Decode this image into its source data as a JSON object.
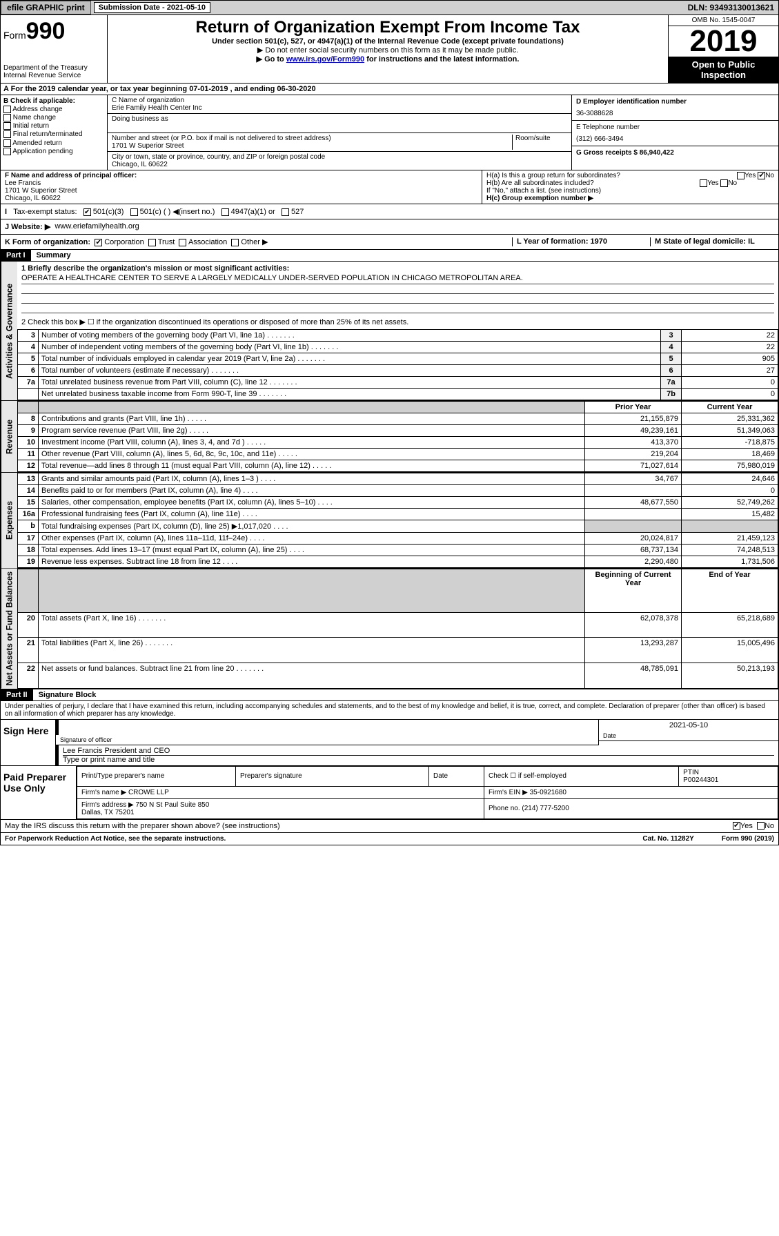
{
  "top": {
    "efile": "efile GRAPHIC print",
    "submission": "Submission Date - 2021-05-10",
    "dln": "DLN: 93493130013621"
  },
  "header": {
    "form_label": "Form",
    "form_num": "990",
    "dept": "Department of the Treasury\nInternal Revenue Service",
    "title": "Return of Organization Exempt From Income Tax",
    "sub": "Under section 501(c), 527, or 4947(a)(1) of the Internal Revenue Code (except private foundations)",
    "note1": "▶ Do not enter social security numbers on this form as it may be made public.",
    "note2_pre": "▶ Go to ",
    "note2_link": "www.irs.gov/Form990",
    "note2_post": " for instructions and the latest information.",
    "omb": "OMB No. 1545-0047",
    "year": "2019",
    "open": "Open to Public Inspection"
  },
  "rowA": "A For the 2019 calendar year, or tax year beginning 07-01-2019   , and ending 06-30-2020",
  "colB": {
    "title": "B Check if applicable:",
    "items": [
      "Address change",
      "Name change",
      "Initial return",
      "Final return/terminated",
      "Amended return",
      "Application pending"
    ]
  },
  "colC": {
    "name_lbl": "C Name of organization",
    "name": "Erie Family Health Center Inc",
    "dba_lbl": "Doing business as",
    "addr_lbl": "Number and street (or P.O. box if mail is not delivered to street address)",
    "room_lbl": "Room/suite",
    "addr": "1701 W Superior Street",
    "city_lbl": "City or town, state or province, country, and ZIP or foreign postal code",
    "city": "Chicago, IL  60622"
  },
  "colD": {
    "ein_lbl": "D Employer identification number",
    "ein": "36-3088628",
    "tel_lbl": "E Telephone number",
    "tel": "(312) 666-3494",
    "gross_lbl": "G Gross receipts $ 86,940,422"
  },
  "colF": {
    "lbl": "F Name and address of principal officer:",
    "name": "Lee Francis",
    "addr": "1701 W Superior Street\nChicago, IL  60622"
  },
  "colH": {
    "a": "H(a)  Is this a group return for subordinates?",
    "b": "H(b)  Are all subordinates included?",
    "note": "If \"No,\" attach a list. (see instructions)",
    "c": "H(c)  Group exemption number ▶"
  },
  "rowI": {
    "lbl": "Tax-exempt status:",
    "o1": "501(c)(3)",
    "o2": "501(c) (   ) ◀(insert no.)",
    "o3": "4947(a)(1) or",
    "o4": "527"
  },
  "rowJ": {
    "lbl": "J   Website: ▶",
    "val": "www.eriefamilyhealth.org"
  },
  "rowK": {
    "lbl": "K Form of organization:",
    "o1": "Corporation",
    "o2": "Trust",
    "o3": "Association",
    "o4": "Other ▶",
    "l": "L Year of formation: 1970",
    "m": "M State of legal domicile: IL"
  },
  "part1": {
    "hdr": "Part I",
    "title": "Summary",
    "q1": "1  Briefly describe the organization's mission or most significant activities:",
    "mission": "OPERATE A HEALTHCARE CENTER TO SERVE A LARGELY MEDICALLY UNDER-SERVED POPULATION IN CHICAGO METROPOLITAN AREA.",
    "q2": "2   Check this box ▶ ☐  if the organization discontinued its operations or disposed of more than 25% of its net assets.",
    "tabs": {
      "activities": "Activities & Governance",
      "revenue": "Revenue",
      "expenses": "Expenses",
      "net": "Net Assets or Fund Balances"
    },
    "rows_act": [
      {
        "n": "3",
        "t": "Number of voting members of the governing body (Part VI, line 1a)",
        "b": "3",
        "v": "22"
      },
      {
        "n": "4",
        "t": "Number of independent voting members of the governing body (Part VI, line 1b)",
        "b": "4",
        "v": "22"
      },
      {
        "n": "5",
        "t": "Total number of individuals employed in calendar year 2019 (Part V, line 2a)",
        "b": "5",
        "v": "905"
      },
      {
        "n": "6",
        "t": "Total number of volunteers (estimate if necessary)",
        "b": "6",
        "v": "27"
      },
      {
        "n": "7a",
        "t": "Total unrelated business revenue from Part VIII, column (C), line 12",
        "b": "7a",
        "v": "0"
      },
      {
        "n": "",
        "t": "Net unrelated business taxable income from Form 990-T, line 39",
        "b": "7b",
        "v": "0"
      }
    ],
    "hdr_prior": "Prior Year",
    "hdr_current": "Current Year",
    "rows_rev": [
      {
        "n": "8",
        "t": "Contributions and grants (Part VIII, line 1h)",
        "p": "21,155,879",
        "c": "25,331,362"
      },
      {
        "n": "9",
        "t": "Program service revenue (Part VIII, line 2g)",
        "p": "49,239,161",
        "c": "51,349,063"
      },
      {
        "n": "10",
        "t": "Investment income (Part VIII, column (A), lines 3, 4, and 7d )",
        "p": "413,370",
        "c": "-718,875"
      },
      {
        "n": "11",
        "t": "Other revenue (Part VIII, column (A), lines 5, 6d, 8c, 9c, 10c, and 11e)",
        "p": "219,204",
        "c": "18,469"
      },
      {
        "n": "12",
        "t": "Total revenue—add lines 8 through 11 (must equal Part VIII, column (A), line 12)",
        "p": "71,027,614",
        "c": "75,980,019"
      }
    ],
    "rows_exp": [
      {
        "n": "13",
        "t": "Grants and similar amounts paid (Part IX, column (A), lines 1–3 )",
        "p": "34,767",
        "c": "24,646"
      },
      {
        "n": "14",
        "t": "Benefits paid to or for members (Part IX, column (A), line 4)",
        "p": "",
        "c": "0"
      },
      {
        "n": "15",
        "t": "Salaries, other compensation, employee benefits (Part IX, column (A), lines 5–10)",
        "p": "48,677,550",
        "c": "52,749,262"
      },
      {
        "n": "16a",
        "t": "Professional fundraising fees (Part IX, column (A), line 11e)",
        "p": "",
        "c": "15,482"
      },
      {
        "n": "b",
        "t": "Total fundraising expenses (Part IX, column (D), line 25) ▶1,017,020",
        "p": "",
        "c": "",
        "shade": true
      },
      {
        "n": "17",
        "t": "Other expenses (Part IX, column (A), lines 11a–11d, 11f–24e)",
        "p": "20,024,817",
        "c": "21,459,123"
      },
      {
        "n": "18",
        "t": "Total expenses. Add lines 13–17 (must equal Part IX, column (A), line 25)",
        "p": "68,737,134",
        "c": "74,248,513"
      },
      {
        "n": "19",
        "t": "Revenue less expenses. Subtract line 18 from line 12",
        "p": "2,290,480",
        "c": "1,731,506"
      }
    ],
    "hdr_beg": "Beginning of Current Year",
    "hdr_end": "End of Year",
    "rows_net": [
      {
        "n": "20",
        "t": "Total assets (Part X, line 16)",
        "p": "62,078,378",
        "c": "65,218,689"
      },
      {
        "n": "21",
        "t": "Total liabilities (Part X, line 26)",
        "p": "13,293,287",
        "c": "15,005,496"
      },
      {
        "n": "22",
        "t": "Net assets or fund balances. Subtract line 21 from line 20",
        "p": "48,785,091",
        "c": "50,213,193"
      }
    ]
  },
  "part2": {
    "hdr": "Part II",
    "title": "Signature Block",
    "decl": "Under penalties of perjury, I declare that I have examined this return, including accompanying schedules and statements, and to the best of my knowledge and belief, it is true, correct, and complete. Declaration of preparer (other than officer) is based on all information of which preparer has any knowledge.",
    "sign_here": "Sign Here",
    "sig_officer": "Signature of officer",
    "date": "2021-05-10",
    "date_lbl": "Date",
    "name_title": "Lee Francis  President and CEO",
    "type_name": "Type or print name and title",
    "paid": "Paid Preparer Use Only",
    "prep_name_lbl": "Print/Type preparer's name",
    "prep_sig_lbl": "Preparer's signature",
    "prep_date_lbl": "Date",
    "check_self": "Check ☐ if self-employed",
    "ptin_lbl": "PTIN",
    "ptin": "P00244301",
    "firm_name_lbl": "Firm's name    ▶",
    "firm_name": "CROWE LLP",
    "firm_ein_lbl": "Firm's EIN ▶",
    "firm_ein": "35-0921680",
    "firm_addr_lbl": "Firm's address ▶",
    "firm_addr": "750 N St Paul Suite 850\nDallas, TX  75201",
    "phone_lbl": "Phone no.",
    "phone": "(214) 777-5200",
    "discuss": "May the IRS discuss this return with the preparer shown above? (see instructions)"
  },
  "footer": {
    "pra": "For Paperwork Reduction Act Notice, see the separate instructions.",
    "cat": "Cat. No. 11282Y",
    "form": "Form 990 (2019)"
  }
}
